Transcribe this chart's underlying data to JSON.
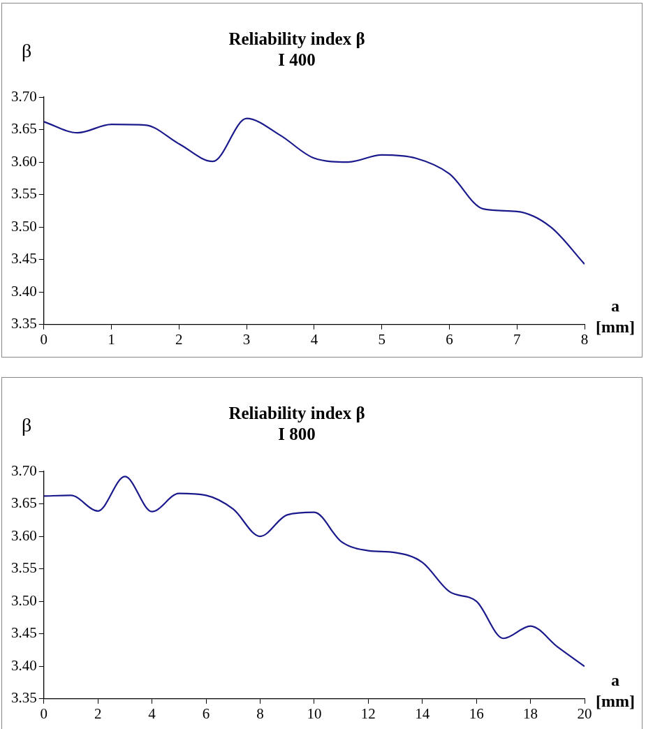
{
  "chart_data": [
    {
      "type": "line",
      "title": "Reliability index β",
      "subtitle": "I 400",
      "ylabel": "β",
      "xlabel": "a [mm]",
      "x": [
        0,
        0.5,
        1,
        1.5,
        2,
        2.5,
        3,
        3.5,
        4,
        4.5,
        5,
        5.5,
        6,
        6.5,
        7,
        7.5,
        8
      ],
      "series": [
        {
          "color": "#1a1a8c",
          "values": [
            3.662,
            3.645,
            3.658,
            3.657,
            3.628,
            3.601,
            3.667,
            3.641,
            3.606,
            3.6,
            3.611,
            3.606,
            3.582,
            3.528,
            3.524,
            3.5,
            3.443
          ]
        }
      ],
      "xlim": [
        0,
        8
      ],
      "xticks": [
        0,
        1,
        2,
        3,
        4,
        5,
        6,
        7,
        8
      ],
      "ylim": [
        3.35,
        3.7
      ],
      "yticks": [
        {
          "value": 3.35,
          "label": "3.35"
        },
        {
          "value": 3.4,
          "label": "3.40"
        },
        {
          "value": 3.45,
          "label": "3.45"
        },
        {
          "value": 3.5,
          "label": "3.50"
        },
        {
          "value": 3.55,
          "label": "3.55"
        },
        {
          "value": 3.6,
          "label": "3.60"
        },
        {
          "value": 3.65,
          "label": "3.65"
        },
        {
          "value": 3.7,
          "label": "3.70"
        }
      ],
      "grid": false,
      "legend": false,
      "marker": "none",
      "line_style": "solid"
    },
    {
      "type": "line",
      "title": "Reliability index β",
      "subtitle": "I 800",
      "ylabel": "β",
      "xlabel": "a [mm]",
      "x": [
        0,
        1,
        2,
        3,
        4,
        5,
        6,
        7,
        8,
        9,
        10,
        11,
        12,
        13,
        14,
        15,
        16,
        17,
        18,
        19,
        20
      ],
      "series": [
        {
          "color": "#1a1a8c",
          "values": [
            3.662,
            3.663,
            3.639,
            3.692,
            3.638,
            3.666,
            3.663,
            3.642,
            3.6,
            3.633,
            3.637,
            3.592,
            3.578,
            3.575,
            3.56,
            3.515,
            3.5,
            3.443,
            3.462,
            3.43,
            3.4
          ]
        }
      ],
      "xlim": [
        0,
        20
      ],
      "xticks": [
        0,
        2,
        4,
        6,
        8,
        10,
        12,
        14,
        16,
        18,
        20
      ],
      "ylim": [
        3.35,
        3.7
      ],
      "yticks": [
        {
          "value": 3.35,
          "label": "3.35"
        },
        {
          "value": 3.4,
          "label": "3.40"
        },
        {
          "value": 3.45,
          "label": "3.45"
        },
        {
          "value": 3.5,
          "label": "3.50"
        },
        {
          "value": 3.55,
          "label": "3.55"
        },
        {
          "value": 3.6,
          "label": "3.60"
        },
        {
          "value": 3.65,
          "label": "3.65"
        },
        {
          "value": 3.7,
          "label": "3.70"
        }
      ],
      "grid": false,
      "legend": false,
      "marker": "none",
      "line_style": "solid"
    }
  ]
}
